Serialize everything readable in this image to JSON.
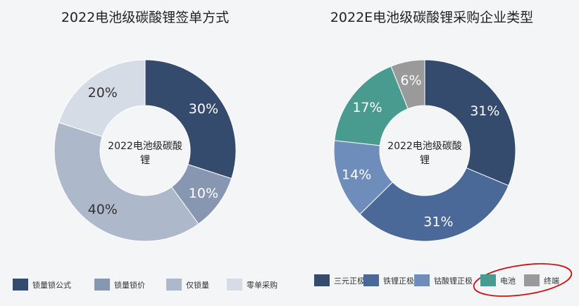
{
  "chart_data": [
    {
      "type": "pie",
      "donut": true,
      "title": "2022电池级碳酸锂签单方式",
      "center_label": "2022电池级碳酸锂",
      "categories": [
        "锁量锁公式",
        "锁量锁价",
        "仅锁量",
        "零单采购"
      ],
      "values": [
        30,
        10,
        40,
        20
      ],
      "colors": [
        "#354b6e",
        "#8797b1",
        "#adb8cb",
        "#d5dce6"
      ],
      "label_colors": [
        "#ffffff",
        "#ffffff",
        "#333333",
        "#333333"
      ],
      "legend": "bottom"
    },
    {
      "type": "pie",
      "donut": true,
      "title": "2022E电池级碳酸锂采购企业类型",
      "center_label": "2022电池级碳酸锂",
      "categories": [
        "三元正极",
        "铁锂正极",
        "钴酸锂正极",
        "电池",
        "终端"
      ],
      "values": [
        31,
        31,
        14,
        17,
        6
      ],
      "colors": [
        "#354b6e",
        "#4a6898",
        "#6f8dba",
        "#4a9b8f",
        "#9a9a9a"
      ],
      "label_colors": [
        "#ffffff",
        "#ffffff",
        "#ffffff",
        "#ffffff",
        "#ffffff"
      ],
      "legend": "bottom"
    }
  ],
  "annotation": {
    "shape": "ellipse",
    "color": "#cc1111",
    "target": "电池, 终端 legend entries"
  }
}
